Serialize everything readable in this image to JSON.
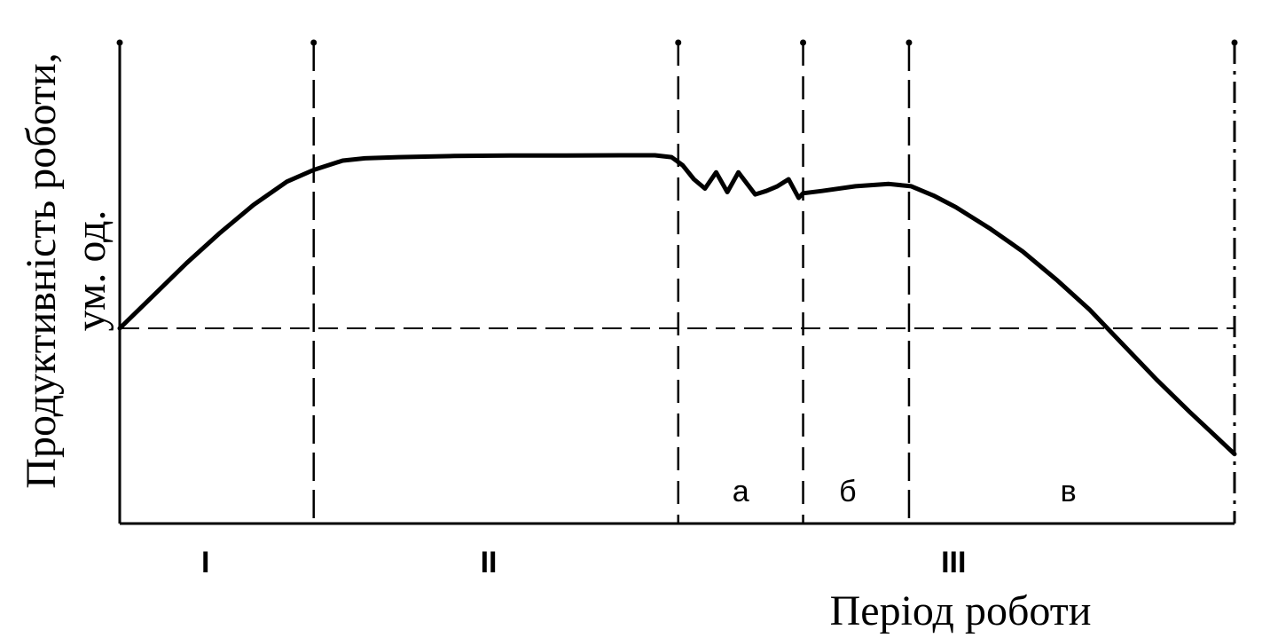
{
  "chart_data": {
    "type": "line",
    "ylabel_line1": "Продуктивність роботи,",
    "ylabel_line2": "ум. од.",
    "xlabel": "Період роботи",
    "baseline_y": 0,
    "ylim": [
      -50,
      100
    ],
    "xlim": [
      0,
      100
    ],
    "phase_boundaries_x": [
      17.4,
      50.1,
      61.3,
      70.8
    ],
    "phases": [
      {
        "label": "I",
        "x": 7.7
      },
      {
        "label": "II",
        "x": 33.1
      },
      {
        "label": "III",
        "x": 74.8
      }
    ],
    "subphases": [
      {
        "label": "а",
        "x": 55.7
      },
      {
        "label": "б",
        "x": 65.3
      },
      {
        "label": "в",
        "x": 85.1
      }
    ],
    "series": [
      {
        "x": [
          0,
          3,
          6,
          9,
          12,
          15,
          17.4,
          20,
          22,
          25,
          30,
          35,
          40,
          45,
          48,
          49.5,
          50.5,
          51.5,
          52.5,
          53.5,
          54.5,
          55.5,
          57,
          58,
          59,
          60,
          60.9,
          61.3,
          63,
          66,
          69,
          71,
          73,
          75,
          78,
          81,
          84,
          87,
          90,
          93,
          96,
          98,
          100
        ],
        "y": [
          0,
          14,
          28,
          41,
          53,
          63,
          68,
          72,
          73,
          73.5,
          74,
          74.2,
          74.2,
          74.3,
          74.3,
          73.5,
          70,
          64,
          60,
          67,
          58.5,
          67,
          57.5,
          59,
          61,
          64,
          56,
          58,
          59,
          61,
          62,
          61,
          57,
          52,
          43,
          33,
          21,
          8,
          -7,
          -22,
          -36,
          -45,
          -54
        ]
      }
    ]
  }
}
